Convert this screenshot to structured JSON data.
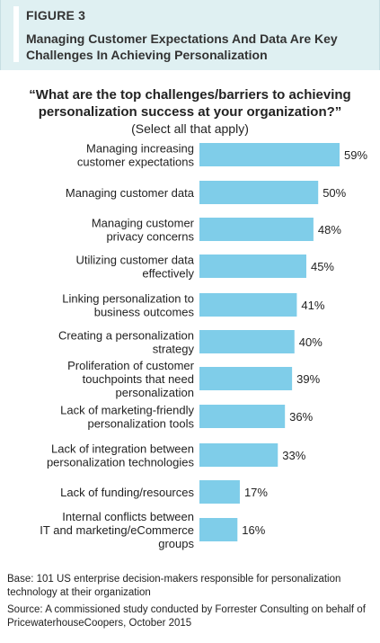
{
  "figure": {
    "label": "FIGURE 3",
    "title": "Managing Customer Expectations And Data Are Key Challenges In Achieving Personalization"
  },
  "question": "“What are the top challenges/barriers to achieving personalization success at your organization?”",
  "question_note": "(Select all that apply)",
  "footer": {
    "base": "Base: 101 US enterprise decision-makers responsible for personalization technology at their organization",
    "source": "Source: A commissioned study conducted by Forrester Consulting on behalf of PricewaterhouseCoopers, October 2015"
  },
  "colors": {
    "bar": "#7fcde9",
    "header_band": "#dff0f2"
  },
  "chart_data": {
    "type": "bar",
    "orientation": "horizontal",
    "title": "“What are the top challenges/barriers to achieving personalization success at your organization?”",
    "subtitle": "(Select all that apply)",
    "unit": "%",
    "xlim": [
      0,
      59
    ],
    "grid": false,
    "categories": [
      [
        "Managing increasing",
        "customer expectations"
      ],
      [
        "Managing customer data"
      ],
      [
        "Managing customer",
        "privacy concerns"
      ],
      [
        "Utilizing customer data",
        "effectively"
      ],
      [
        "Linking personalization to",
        "business outcomes"
      ],
      [
        "Creating a personalization",
        "strategy"
      ],
      [
        "Proliferation of customer",
        "touchpoints that need",
        "personalization"
      ],
      [
        "Lack of marketing-friendly",
        "personalization tools"
      ],
      [
        "Lack of integration between",
        "personalization technologies"
      ],
      [
        "Lack of funding/resources"
      ],
      [
        "Internal conflicts between",
        "IT and marketing/eCommerce",
        "groups"
      ]
    ],
    "values": [
      59,
      50,
      48,
      45,
      41,
      40,
      39,
      36,
      33,
      17,
      16
    ],
    "value_labels": [
      "59%",
      "50%",
      "48%",
      "45%",
      "41%",
      "40%",
      "39%",
      "36%",
      "33%",
      "17%",
      "16%"
    ]
  }
}
